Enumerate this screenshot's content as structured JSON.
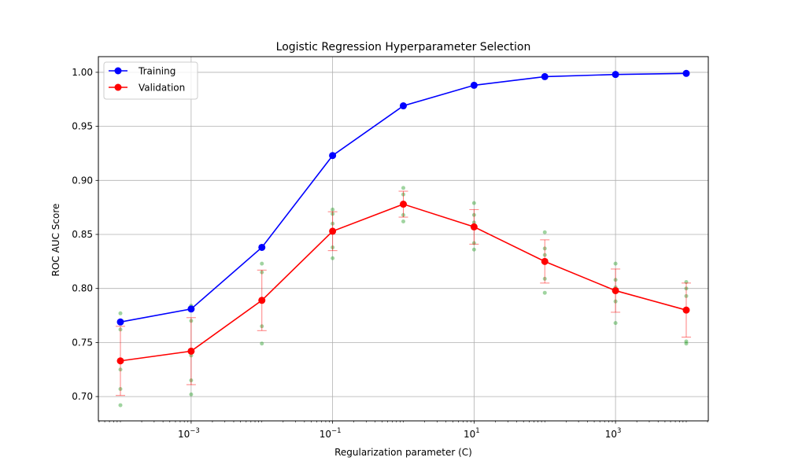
{
  "chart_data": {
    "type": "line",
    "title": "Logistic Regression Hyperparameter Selection",
    "xlabel": "Regularization parameter (C)",
    "ylabel": "ROC AUC Score",
    "x_scale": "log",
    "x": [
      0.0001,
      0.001,
      0.01,
      0.1,
      1,
      10,
      100,
      1000,
      10000
    ],
    "xlim": [
      4.88e-05,
      20500
    ],
    "ylim": [
      0.6775,
      1.0145
    ],
    "grid": true,
    "legend_position": "top-left",
    "x_ticks": [
      {
        "value": 0.001,
        "base": "10",
        "exp": "−3"
      },
      {
        "value": 0.1,
        "base": "10",
        "exp": "−1"
      },
      {
        "value": 10,
        "base": "10",
        "exp": "1"
      },
      {
        "value": 1000,
        "base": "10",
        "exp": "3"
      }
    ],
    "y_ticks": [
      {
        "value": 0.7,
        "label": "0.70"
      },
      {
        "value": 0.75,
        "label": "0.75"
      },
      {
        "value": 0.8,
        "label": "0.80"
      },
      {
        "value": 0.85,
        "label": "0.85"
      },
      {
        "value": 0.9,
        "label": "0.90"
      },
      {
        "value": 0.95,
        "label": "0.95"
      },
      {
        "value": 1.0,
        "label": "1.00"
      }
    ],
    "series": [
      {
        "name": "Training",
        "color": "#0000ff",
        "values": [
          0.769,
          0.781,
          0.838,
          0.923,
          0.969,
          0.988,
          0.996,
          0.998,
          0.999
        ]
      },
      {
        "name": "Validation",
        "color": "#ff0000",
        "values": [
          0.733,
          0.742,
          0.789,
          0.853,
          0.878,
          0.857,
          0.825,
          0.798,
          0.78
        ],
        "error": [
          0.032,
          0.031,
          0.028,
          0.018,
          0.012,
          0.016,
          0.02,
          0.02,
          0.025
        ]
      }
    ],
    "fold_scores": {
      "color": "#2ca02c",
      "values": [
        [
          0.692,
          0.707,
          0.725,
          0.762,
          0.777
        ],
        [
          0.702,
          0.715,
          0.738,
          0.77,
          0.784
        ],
        [
          0.749,
          0.765,
          0.79,
          0.815,
          0.823
        ],
        [
          0.828,
          0.838,
          0.86,
          0.869,
          0.873
        ],
        [
          0.862,
          0.868,
          0.878,
          0.887,
          0.893
        ],
        [
          0.836,
          0.842,
          0.861,
          0.868,
          0.879
        ],
        [
          0.796,
          0.809,
          0.831,
          0.837,
          0.852
        ],
        [
          0.768,
          0.788,
          0.801,
          0.808,
          0.823
        ],
        [
          0.749,
          0.751,
          0.793,
          0.8,
          0.806
        ]
      ]
    }
  }
}
